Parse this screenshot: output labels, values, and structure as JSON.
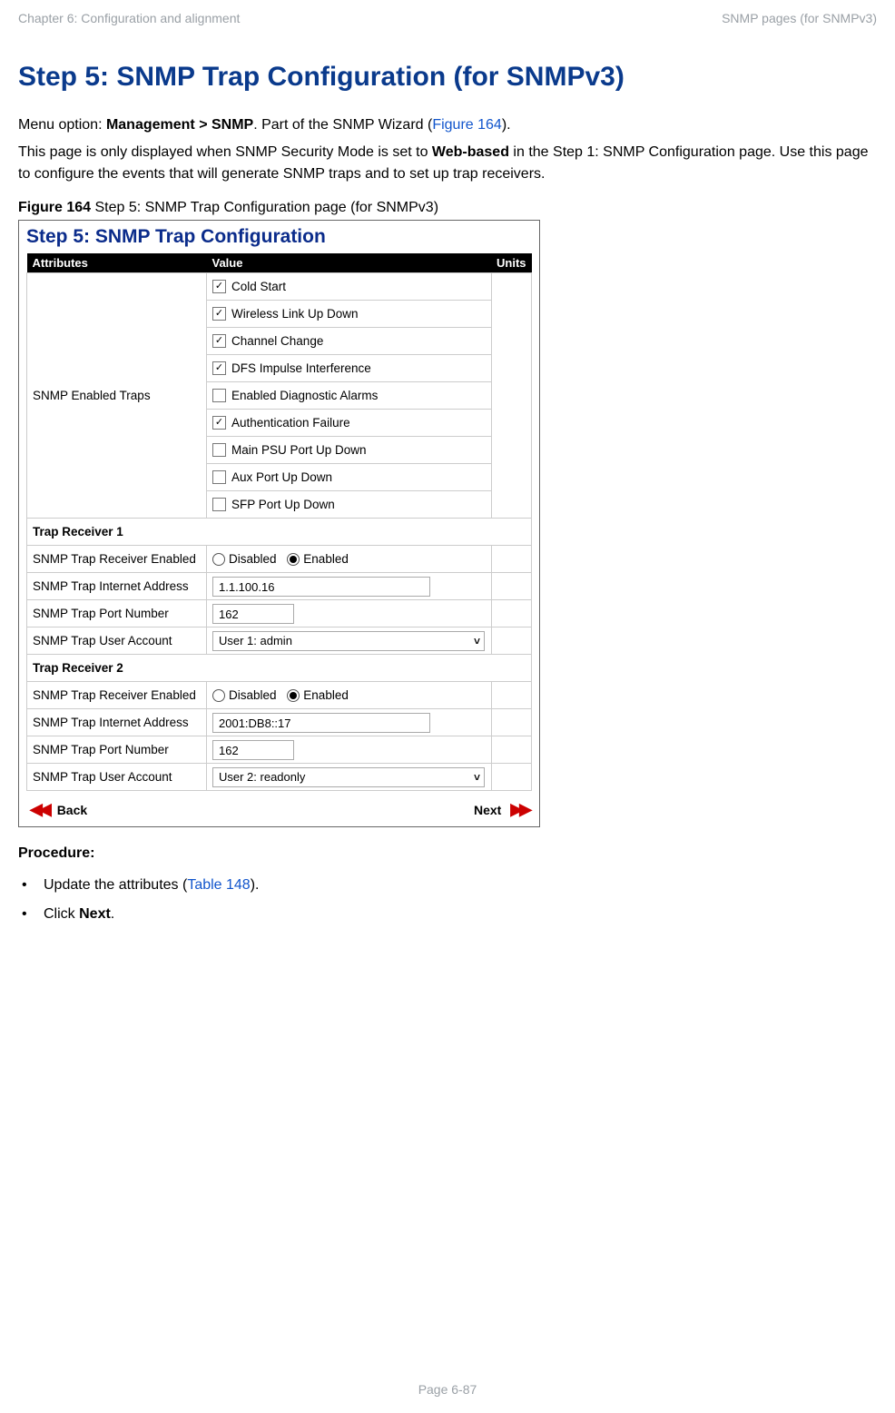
{
  "header": {
    "left": "Chapter 6:  Configuration and alignment",
    "right": "SNMP pages (for SNMPv3)"
  },
  "title": "Step 5: SNMP Trap Configuration (for SNMPv3)",
  "intro": {
    "menu_prefix": "Menu option: ",
    "menu_path": "Management > SNMP",
    "menu_suffix": ". Part of the SNMP Wizard (",
    "fig_ref": "Figure 164",
    "menu_close": ").",
    "para2_a": "This page is only displayed when SNMP Security Mode is set to ",
    "para2_b": "Web-based",
    "para2_c": " in the Step 1: SNMP Configuration page. Use this page to configure the events that will generate SNMP traps and to set up trap receivers."
  },
  "figure": {
    "caption_label": "Figure 164",
    "caption_text": "  Step 5: SNMP Trap Configuration page (for SNMPv3)",
    "inner_title": "Step 5: SNMP Trap Configuration",
    "th_attr": "Attributes",
    "th_val": "Value",
    "th_unit": "Units",
    "row_traps_attr": "SNMP Enabled Traps",
    "traps": [
      {
        "label": "Cold Start",
        "checked": true
      },
      {
        "label": "Wireless Link Up Down",
        "checked": true
      },
      {
        "label": "Channel Change",
        "checked": true
      },
      {
        "label": "DFS Impulse Interference",
        "checked": true
      },
      {
        "label": "Enabled Diagnostic Alarms",
        "checked": false
      },
      {
        "label": "Authentication Failure",
        "checked": true
      },
      {
        "label": "Main PSU Port Up Down",
        "checked": false
      },
      {
        "label": "Aux Port Up Down",
        "checked": false
      },
      {
        "label": "SFP Port Up Down",
        "checked": false
      }
    ],
    "section1": "Trap Receiver 1",
    "section2": "Trap Receiver 2",
    "row_enabled": "SNMP Trap Receiver Enabled",
    "row_addr": "SNMP Trap Internet Address",
    "row_port": "SNMP Trap Port Number",
    "row_user": "SNMP Trap User Account",
    "radio_disabled": "Disabled",
    "radio_enabled": "Enabled",
    "r1": {
      "enabled": true,
      "addr": "1.1.100.16",
      "port": "162",
      "user": "User 1: admin"
    },
    "r2": {
      "enabled": true,
      "addr": "2001:DB8::17",
      "port": "162",
      "user": "User 2: readonly"
    },
    "nav_back": "Back",
    "nav_next": "Next"
  },
  "procedure": {
    "title": "Procedure:",
    "item1_a": "Update the attributes (",
    "item1_link": "Table 148",
    "item1_b": ").",
    "item2_a": "Click ",
    "item2_b": "Next",
    "item2_c": "."
  },
  "footer": "Page 6-87"
}
